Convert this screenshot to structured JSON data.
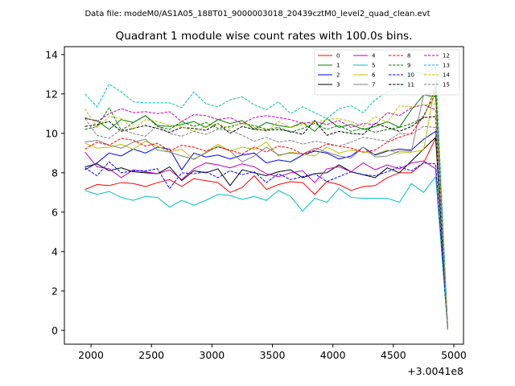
{
  "suptitle": "Data file: modeM0/AS1A05_188T01_9000003018_20439cztM0_level2_quad_clean.evt",
  "chart_data": {
    "type": "line",
    "title": "Quadrant 1 module wise count rates with 100.0s bins.",
    "xlabel": "",
    "ylabel": "",
    "x_offset_label": "+3.0041e8",
    "xlim": [
      1780,
      5080
    ],
    "ylim": [
      -0.7,
      14.4
    ],
    "x_ticks": [
      2000,
      2500,
      3000,
      3500,
      4000,
      4500,
      5000
    ],
    "y_ticks": [
      0,
      2,
      4,
      6,
      8,
      10,
      12,
      14
    ],
    "grid": false,
    "legend_placement": "top-right",
    "x": [
      1950,
      2050,
      2150,
      2250,
      2350,
      2450,
      2550,
      2650,
      2750,
      2850,
      2950,
      3050,
      3150,
      3250,
      3350,
      3450,
      3550,
      3650,
      3750,
      3850,
      3950,
      4050,
      4150,
      4250,
      4350,
      4450,
      4550,
      4650,
      4750,
      4850,
      4950
    ],
    "series": [
      {
        "name": "0",
        "color": "#ff0000",
        "dash": "solid",
        "values": [
          7.15,
          7.4,
          7.35,
          7.5,
          7.45,
          7.3,
          7.5,
          7.65,
          7.3,
          7.7,
          7.6,
          7.5,
          7.0,
          7.25,
          7.85,
          7.15,
          7.4,
          7.55,
          7.5,
          6.9,
          7.55,
          7.4,
          7.1,
          7.3,
          7.35,
          7.75,
          8.0,
          8.0,
          8.5,
          9.75,
          0.05
        ]
      },
      {
        "name": "1",
        "color": "#008000",
        "dash": "solid",
        "values": [
          10.75,
          10.65,
          10.2,
          10.7,
          10.55,
          10.9,
          10.4,
          10.35,
          10.45,
          10.6,
          10.3,
          10.7,
          10.5,
          10.65,
          10.2,
          10.55,
          10.4,
          10.3,
          10.55,
          10.1,
          10.75,
          10.3,
          10.45,
          10.2,
          10.35,
          10.6,
          10.3,
          11.2,
          11.95,
          11.85,
          0.05
        ]
      },
      {
        "name": "2",
        "color": "#0000ff",
        "dash": "solid",
        "values": [
          8.15,
          8.5,
          9.0,
          8.85,
          9.2,
          9.0,
          9.3,
          9.2,
          8.15,
          9.0,
          8.8,
          8.9,
          8.7,
          8.9,
          9.0,
          8.5,
          8.65,
          8.55,
          8.9,
          9.1,
          9.0,
          8.7,
          8.85,
          9.3,
          8.9,
          9.1,
          9.2,
          9.15,
          9.7,
          10.1,
          0.05
        ]
      },
      {
        "name": "3",
        "color": "#000000",
        "dash": "solid",
        "values": [
          8.3,
          8.45,
          8.1,
          8.25,
          8.05,
          8.0,
          7.95,
          8.3,
          7.6,
          8.1,
          8.0,
          8.2,
          7.35,
          8.15,
          8.0,
          7.85,
          8.05,
          8.15,
          7.75,
          7.95,
          8.0,
          8.4,
          8.05,
          7.9,
          7.75,
          8.25,
          8.0,
          8.6,
          9.2,
          9.8,
          0.05
        ]
      },
      {
        "name": "4",
        "color": "#bf00bf",
        "dash": "solid",
        "values": [
          9.05,
          8.3,
          8.2,
          7.75,
          8.15,
          8.05,
          7.95,
          8.15,
          7.65,
          8.2,
          8.5,
          8.4,
          8.25,
          8.45,
          8.3,
          7.95,
          7.8,
          8.0,
          8.1,
          7.5,
          8.2,
          8.3,
          8.05,
          8.5,
          8.15,
          8.4,
          8.2,
          8.5,
          8.6,
          8.2,
          0.05
        ]
      },
      {
        "name": "5",
        "color": "#00bfbf",
        "dash": "solid",
        "values": [
          7.1,
          6.9,
          7.05,
          6.75,
          6.6,
          6.8,
          6.75,
          6.25,
          6.6,
          6.35,
          6.6,
          6.9,
          6.85,
          6.65,
          6.8,
          6.6,
          7.1,
          6.8,
          6.05,
          6.7,
          6.5,
          7.2,
          6.75,
          6.7,
          6.7,
          6.7,
          6.5,
          7.45,
          7.0,
          7.8,
          0.05
        ]
      },
      {
        "name": "6",
        "color": "#bfbf00",
        "dash": "solid",
        "values": [
          9.5,
          9.25,
          9.3,
          9.45,
          9.2,
          9.6,
          9.35,
          9.05,
          9.2,
          8.65,
          9.05,
          9.45,
          9.1,
          9.3,
          9.2,
          9.55,
          8.85,
          9.05,
          8.95,
          8.85,
          9.3,
          9.0,
          9.15,
          9.05,
          8.95,
          9.15,
          9.0,
          9.05,
          9.15,
          12.6,
          0.05
        ]
      },
      {
        "name": "7",
        "color": "#808080",
        "dash": "solid",
        "values": [
          9.55,
          9.65,
          9.4,
          9.25,
          9.55,
          9.7,
          9.15,
          9.05,
          8.85,
          8.7,
          9.0,
          9.35,
          9.1,
          8.55,
          8.85,
          9.3,
          8.9,
          9.0,
          8.95,
          9.25,
          9.05,
          8.85,
          8.75,
          9.3,
          8.8,
          8.85,
          9.1,
          9.1,
          11.95,
          12.1,
          0.05
        ]
      },
      {
        "name": "8",
        "color": "#ff0000",
        "dash": "dashed",
        "values": [
          9.2,
          9.55,
          9.4,
          9.75,
          9.65,
          9.35,
          9.5,
          9.1,
          9.4,
          9.3,
          9.1,
          9.3,
          9.15,
          8.95,
          9.3,
          9.05,
          9.35,
          9.25,
          8.95,
          9.15,
          9.45,
          9.35,
          9.25,
          9.05,
          9.15,
          9.55,
          9.8,
          10.0,
          10.9,
          12.0,
          0.05
        ]
      },
      {
        "name": "9",
        "color": "#008000",
        "dash": "dashed",
        "values": [
          10.2,
          10.35,
          11.3,
          10.15,
          10.55,
          10.9,
          10.35,
          10.2,
          10.6,
          10.35,
          10.55,
          10.25,
          10.35,
          10.5,
          10.4,
          10.2,
          10.3,
          10.05,
          10.25,
          10.5,
          10.2,
          10.4,
          10.1,
          10.25,
          10.05,
          10.2,
          10.3,
          10.5,
          10.8,
          12.3,
          0.05
        ]
      },
      {
        "name": "10",
        "color": "#0000ff",
        "dash": "dashed",
        "values": [
          8.25,
          7.85,
          8.55,
          8.0,
          8.1,
          8.1,
          8.2,
          7.2,
          8.0,
          7.95,
          8.05,
          7.75,
          8.1,
          7.9,
          8.05,
          7.5,
          7.95,
          7.65,
          7.8,
          7.95,
          7.55,
          7.8,
          8.05,
          7.9,
          7.85,
          8.05,
          8.3,
          8.1,
          8.5,
          8.45,
          0.05
        ]
      },
      {
        "name": "11",
        "color": "#000000",
        "dash": "dashed",
        "values": [
          10.35,
          10.45,
          10.6,
          10.1,
          10.25,
          10.4,
          10.25,
          10.05,
          10.3,
          10.25,
          10.15,
          10.5,
          10.0,
          10.35,
          10.2,
          10.15,
          10.2,
          10.1,
          9.95,
          10.65,
          9.9,
          10.1,
          10.0,
          9.95,
          10.5,
          10.3,
          10.1,
          10.35,
          10.8,
          10.85,
          0.05
        ]
      },
      {
        "name": "12",
        "color": "#bf00bf",
        "dash": "dashed",
        "values": [
          10.8,
          10.6,
          11.0,
          11.25,
          11.05,
          11.1,
          11.0,
          11.1,
          10.6,
          10.95,
          10.9,
          10.7,
          10.8,
          10.5,
          10.8,
          10.9,
          10.8,
          10.7,
          10.5,
          10.6,
          10.45,
          10.65,
          10.3,
          10.5,
          10.45,
          11.05,
          10.9,
          11.3,
          11.45,
          11.2,
          0.05
        ]
      },
      {
        "name": "13",
        "color": "#00bfbf",
        "dash": "dashed",
        "values": [
          12.0,
          11.35,
          12.5,
          12.1,
          11.6,
          11.55,
          11.55,
          11.55,
          11.3,
          12.1,
          11.5,
          11.35,
          11.7,
          11.85,
          11.45,
          11.2,
          11.6,
          11.0,
          11.35,
          11.05,
          10.75,
          11.25,
          11.4,
          11.05,
          11.7,
          12.1,
          12.3,
          13.15,
          13.0,
          13.35,
          0.05
        ]
      },
      {
        "name": "14",
        "color": "#bfbf00",
        "dash": "dashed",
        "values": [
          11.25,
          10.3,
          10.85,
          10.75,
          10.2,
          10.7,
          10.6,
          10.4,
          10.35,
          10.1,
          10.35,
          10.5,
          10.25,
          10.55,
          10.3,
          10.1,
          10.6,
          10.3,
          10.45,
          10.55,
          10.7,
          10.75,
          10.6,
          10.35,
          10.85,
          10.55,
          11.4,
          11.35,
          11.45,
          11.5,
          0.05
        ]
      },
      {
        "name": "15",
        "color": "#808080",
        "dash": "dashed",
        "values": [
          10.75,
          9.9,
          9.75,
          10.2,
          10.0,
          9.85,
          10.4,
          10.0,
          9.85,
          10.1,
          9.95,
          10.2,
          10.15,
          9.9,
          9.6,
          9.8,
          9.55,
          9.65,
          9.45,
          9.6,
          9.5,
          9.35,
          9.55,
          9.8,
          9.7,
          9.6,
          10.0,
          9.95,
          10.35,
          10.3,
          0.05
        ]
      }
    ]
  }
}
